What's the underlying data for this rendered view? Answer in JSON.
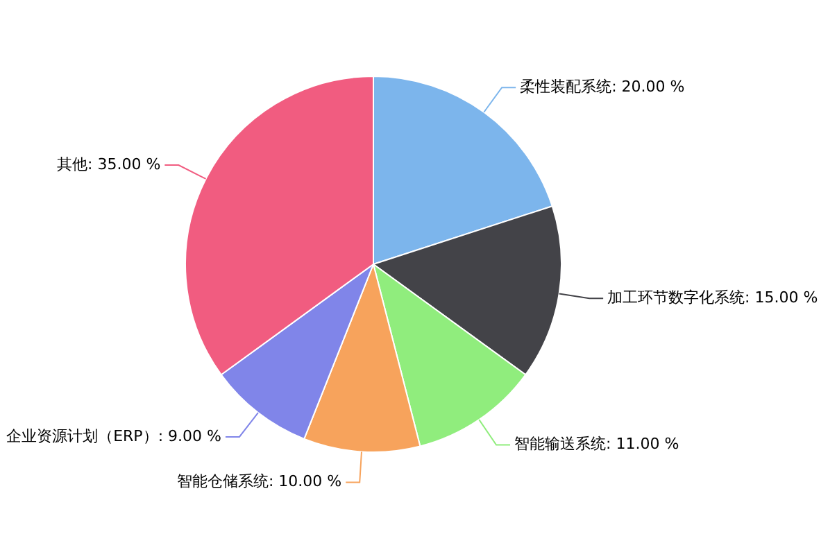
{
  "chart_data": {
    "type": "pie",
    "categories": [
      "柔性装配系统",
      "加工环节数字化系统",
      "智能输送系统",
      "智能仓储系统",
      "企业资源计划（ERP）",
      "其他"
    ],
    "values": [
      20,
      15,
      11,
      10,
      9,
      35
    ],
    "value_labels": [
      "20.00 %",
      "15.00 %",
      "11.00 %",
      "10.00 %",
      "9.00 %",
      "35.00 %"
    ],
    "colors": [
      "#7cb5ec",
      "#434348",
      "#90ed7d",
      "#f7a35c",
      "#8085e9",
      "#f15c80"
    ],
    "legend": false
  }
}
